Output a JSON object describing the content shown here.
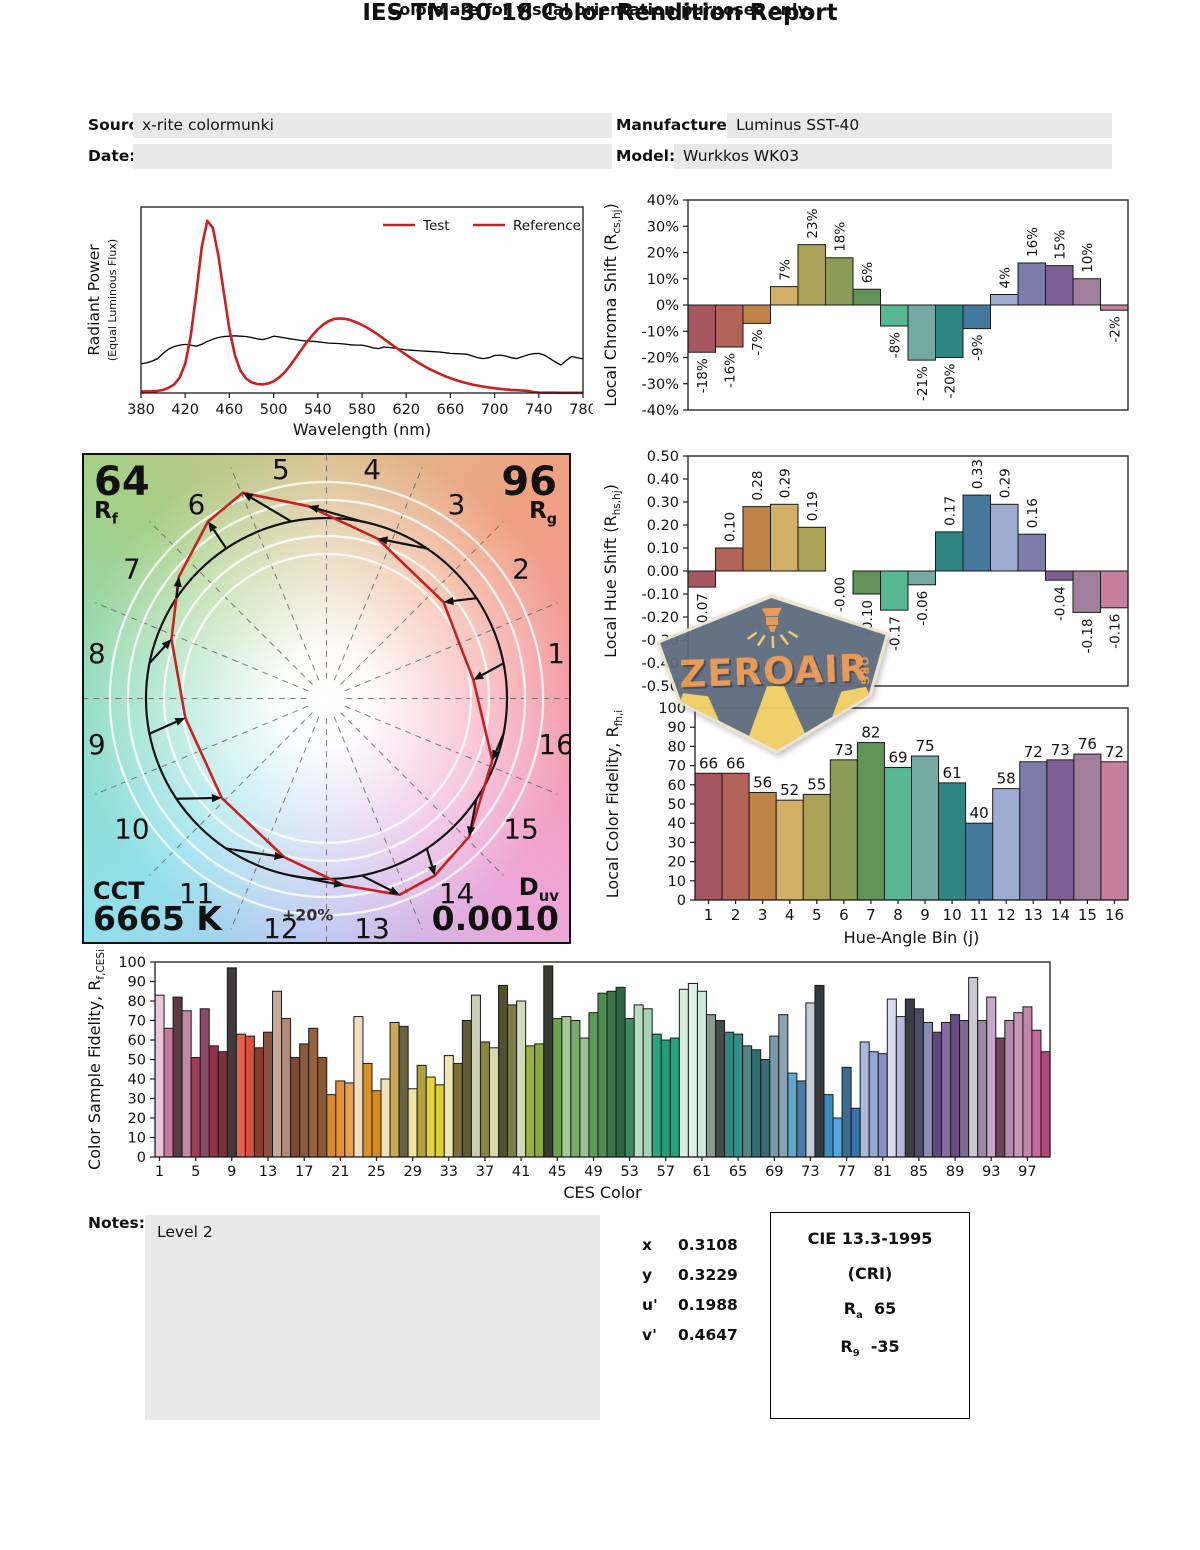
{
  "title": "IES TM-30-18 Color Rendition Report",
  "header": {
    "source_label": "Source:",
    "source_value": "x-rite colormunki",
    "date_label": "Date:",
    "date_value": "",
    "manufacturer_label": "Manufacturer:",
    "manufacturer_value": "Luminus SST-40",
    "model_label": "Model:",
    "model_value": "Wurkkos WK03"
  },
  "bin_colors": [
    "#a55660",
    "#b26358",
    "#c08347",
    "#d2af67",
    "#aaa156",
    "#8c9c55",
    "#629356",
    "#57b894",
    "#74aaa2",
    "#2f8581",
    "#44799d",
    "#9dabd0",
    "#7c7cab",
    "#7d5e95",
    "#a07f9b",
    "#c5809f"
  ],
  "chart_data": [
    {
      "id": "spd",
      "type": "line",
      "xlabel": "Wavelength (nm)",
      "ylabel_line1": "Radiant Power",
      "ylabel_line2": "(Equal Luminous Flux)",
      "xlim": [
        380,
        780
      ],
      "ylim": [
        0,
        1.08
      ],
      "xticks": [
        380,
        420,
        460,
        500,
        540,
        580,
        620,
        660,
        700,
        740,
        780
      ],
      "legend": {
        "test": "Test",
        "reference": "Reference",
        "position": "top-right"
      },
      "x_start": 380,
      "x_step": 5,
      "series": [
        {
          "name": "Test",
          "color": "#cc2020",
          "width": 2.6,
          "y": [
            0.008,
            0.009,
            0.01,
            0.012,
            0.018,
            0.03,
            0.05,
            0.09,
            0.17,
            0.33,
            0.58,
            0.85,
            1.0,
            0.96,
            0.8,
            0.58,
            0.37,
            0.22,
            0.13,
            0.085,
            0.062,
            0.052,
            0.05,
            0.055,
            0.068,
            0.09,
            0.12,
            0.16,
            0.205,
            0.25,
            0.295,
            0.335,
            0.37,
            0.398,
            0.418,
            0.43,
            0.433,
            0.43,
            0.422,
            0.41,
            0.395,
            0.378,
            0.358,
            0.336,
            0.313,
            0.29,
            0.267,
            0.244,
            0.222,
            0.2,
            0.18,
            0.161,
            0.143,
            0.127,
            0.112,
            0.098,
            0.086,
            0.075,
            0.065,
            0.057,
            0.049,
            0.043,
            0.037,
            0.032,
            0.028,
            0.024,
            0.021,
            0.018,
            0.016,
            0.014,
            0.012,
            0.006,
            0.003,
            0.002,
            0.002,
            0.002,
            0.001,
            0.001,
            0.001,
            0.001,
            0.001
          ]
        },
        {
          "name": "Reference",
          "color": "#000000",
          "width": 1.3,
          "y": [
            0.17,
            0.175,
            0.185,
            0.2,
            0.23,
            0.255,
            0.27,
            0.278,
            0.282,
            0.278,
            0.272,
            0.283,
            0.3,
            0.312,
            0.322,
            0.328,
            0.33,
            0.332,
            0.33,
            0.328,
            0.322,
            0.315,
            0.31,
            0.318,
            0.33,
            0.326,
            0.32,
            0.315,
            0.31,
            0.305,
            0.302,
            0.3,
            0.298,
            0.293,
            0.29,
            0.288,
            0.287,
            0.284,
            0.28,
            0.278,
            0.278,
            0.272,
            0.262,
            0.258,
            0.267,
            0.264,
            0.26,
            0.255,
            0.25,
            0.248,
            0.246,
            0.244,
            0.242,
            0.24,
            0.238,
            0.234,
            0.23,
            0.228,
            0.227,
            0.225,
            0.215,
            0.205,
            0.2,
            0.205,
            0.218,
            0.22,
            0.215,
            0.205,
            0.2,
            0.21,
            0.222,
            0.228,
            0.23,
            0.22,
            0.2,
            0.18,
            0.162,
            0.19,
            0.212,
            0.205,
            0.198
          ]
        }
      ]
    },
    {
      "id": "chroma",
      "type": "bar",
      "ylabel_parts": [
        "Local Chroma Shift (R",
        "cs,hj",
        ")"
      ],
      "ylim": [
        -40,
        40
      ],
      "yticks": [
        40,
        30,
        20,
        10,
        0,
        -10,
        -20,
        -30,
        -40
      ],
      "yticklabels": [
        "40%",
        "30%",
        "20%",
        "10%",
        "0%",
        "-10%",
        "-20%",
        "-30%",
        "-40%"
      ],
      "categories": [
        "1",
        "2",
        "3",
        "4",
        "5",
        "6",
        "7",
        "8",
        "9",
        "10",
        "11",
        "12",
        "13",
        "14",
        "15",
        "16"
      ],
      "values": [
        -18,
        -16,
        -7,
        7,
        23,
        18,
        6,
        -8,
        -21,
        -20,
        -9,
        4,
        16,
        15,
        10,
        -2
      ],
      "labels": [
        "-18%",
        "-16%",
        "-7%",
        "7%",
        "23%",
        "18%",
        "6%",
        "-8%",
        "-21%",
        "-20%",
        "-9%",
        "4%",
        "16%",
        "15%",
        "10%",
        "-2%"
      ]
    },
    {
      "id": "hue",
      "type": "bar",
      "ylabel_parts": [
        "Local Hue Shift (R",
        "hs,hj",
        ")"
      ],
      "ylim": [
        -0.5,
        0.5
      ],
      "yticks": [
        0.5,
        0.4,
        0.3,
        0.2,
        0.1,
        0,
        -0.1,
        -0.2,
        -0.3,
        -0.4,
        -0.5
      ],
      "yticklabels": [
        "0.50",
        "0.40",
        "0.30",
        "0.20",
        "0.10",
        "0.00",
        "-0.10",
        "-0.20",
        "-0.30",
        "-0.40",
        "-0.50"
      ],
      "categories": [
        "1",
        "2",
        "3",
        "4",
        "5",
        "6",
        "7",
        "8",
        "9",
        "10",
        "11",
        "12",
        "13",
        "14",
        "15",
        "16"
      ],
      "values": [
        -0.07,
        0.1,
        0.28,
        0.29,
        0.19,
        -0.0,
        -0.1,
        -0.17,
        -0.06,
        0.17,
        0.33,
        0.29,
        0.16,
        -0.04,
        -0.18,
        -0.16
      ],
      "labels": [
        "-0.07",
        "0.10",
        "0.28",
        "0.29",
        "0.19",
        "-0.00",
        "-0.10",
        "-0.17",
        "-0.06",
        "0.17",
        "0.33",
        "0.29",
        "0.16",
        "-0.04",
        "-0.18",
        "-0.16"
      ]
    },
    {
      "id": "fidelity",
      "type": "bar",
      "ylabel_parts": [
        "Local Color Fidelity, R",
        "fh,i",
        ""
      ],
      "xlabel": "Hue-Angle Bin (j)",
      "ylim": [
        0,
        100
      ],
      "yticks": [
        100,
        90,
        80,
        70,
        60,
        50,
        40,
        30,
        20,
        10,
        0
      ],
      "yticklabels": [
        "100",
        "90",
        "80",
        "70",
        "60",
        "50",
        "40",
        "30",
        "20",
        "10",
        "0"
      ],
      "categories": [
        "1",
        "2",
        "3",
        "4",
        "5",
        "6",
        "7",
        "8",
        "9",
        "10",
        "11",
        "12",
        "13",
        "14",
        "15",
        "16"
      ],
      "values": [
        66,
        66,
        56,
        52,
        55,
        73,
        82,
        69,
        75,
        61,
        40,
        58,
        72,
        73,
        76,
        72
      ],
      "labels": [
        "66",
        "66",
        "56",
        "52",
        "55",
        "73",
        "82",
        "69",
        "75",
        "61",
        "40",
        "58",
        "72",
        "73",
        "76",
        "72"
      ]
    },
    {
      "id": "ces",
      "type": "bar",
      "ylabel_parts": [
        "Color Sample Fidelity, R",
        "f,CESi",
        ""
      ],
      "xlabel": "CES Color",
      "ylim": [
        0,
        100
      ],
      "yticks": [
        100,
        90,
        80,
        70,
        60,
        50,
        40,
        30,
        20,
        10,
        0
      ],
      "yticklabels": [
        "100",
        "90",
        "80",
        "70",
        "60",
        "50",
        "40",
        "30",
        "20",
        "10",
        "0"
      ],
      "xticks": [
        1,
        5,
        9,
        13,
        17,
        21,
        25,
        29,
        33,
        37,
        41,
        45,
        49,
        53,
        57,
        61,
        65,
        69,
        73,
        77,
        81,
        85,
        89,
        93,
        97
      ],
      "values": [
        83,
        66,
        82,
        75,
        51,
        76,
        57,
        54,
        97,
        63,
        62,
        56,
        64,
        85,
        71,
        51,
        58,
        66,
        51,
        32,
        39,
        38,
        72,
        48,
        34,
        40,
        69,
        67,
        35,
        47,
        41,
        37,
        52,
        48,
        70,
        83,
        59,
        56,
        88,
        78,
        80,
        57,
        58,
        98,
        71,
        72,
        70,
        61,
        74,
        84,
        85,
        87,
        71,
        78,
        76,
        63,
        60,
        61,
        86,
        89,
        85,
        73,
        70,
        64,
        63,
        57,
        55,
        50,
        62,
        73,
        43,
        39,
        79,
        88,
        32,
        20,
        46,
        25,
        59,
        54,
        53,
        81,
        72,
        81,
        76,
        69,
        64,
        69,
        73,
        70,
        92,
        70,
        82,
        61,
        70,
        74,
        77,
        65,
        54
      ],
      "colors": [
        "#ebc5d8",
        "#c5799c",
        "#593a45",
        "#c089a6",
        "#9c3e54",
        "#8a4a63",
        "#8f3448",
        "#7d2f3a",
        "#3f3a3c",
        "#e0614f",
        "#d94f3b",
        "#8a3b2c",
        "#8a5340",
        "#c4aa9c",
        "#b28a78",
        "#7c4a30",
        "#8a5a3a",
        "#97613c",
        "#8a5a2e",
        "#da8a28",
        "#e89038",
        "#e7a253",
        "#f2dfc2",
        "#d89228",
        "#d8891b",
        "#f2e2bb",
        "#c9a953",
        "#6a6142",
        "#f0e6a3",
        "#b1a140",
        "#e8d23f",
        "#e0cc38",
        "#ede8b2",
        "#7a7238",
        "#5e5d35",
        "#c9cdb2",
        "#8a8645",
        "#d9d9aa",
        "#515130",
        "#7a7e46",
        "#d2dab9",
        "#9ab142",
        "#8aa93a",
        "#363a32",
        "#6aa252",
        "#a2c993",
        "#7aa96a",
        "#9ac192",
        "#5e9a5a",
        "#4e8e52",
        "#3a724a",
        "#2e6642",
        "#3e8a62",
        "#b9dcc4",
        "#a4d4b8",
        "#2aa37e",
        "#1f9e78",
        "#26a17c",
        "#d8ece2",
        "#ddf0e8",
        "#cde8dc",
        "#8a9a8e",
        "#454c48",
        "#2e8a80",
        "#2f8e88",
        "#57827e",
        "#2d6e70",
        "#3a6a74",
        "#7a98a8",
        "#8aa2b4",
        "#62a8cc",
        "#4a7ea8",
        "#c2ccd2",
        "#35383c",
        "#3a8ec4",
        "#55aad8",
        "#3d6a92",
        "#3a72ac",
        "#aab8dc",
        "#98a6d4",
        "#8890c8",
        "#dcdcf0",
        "#b8b8d8",
        "#3c3c44",
        "#4c4c64",
        "#8c8cb0",
        "#5c4a7c",
        "#8a6aa4",
        "#6c4a84",
        "#7c6a92",
        "#ccc8d2",
        "#9c8aa4",
        "#c8a8c8",
        "#6c4458",
        "#b48aa8",
        "#c898b8",
        "#c285a8",
        "#c8679a",
        "#b04878"
      ]
    }
  ],
  "cvg": {
    "rf_value": "64",
    "rf_sym": "R",
    "rf_sub": "f",
    "rg_value": "96",
    "rg_sym": "R",
    "rg_sub": "g",
    "cct_label": "CCT",
    "cct_value": "6665 K",
    "duv_sym": "D",
    "duv_sub": "uv",
    "duv_value": "0.0010",
    "ring_label": "+20%",
    "test_color": "#cc2020",
    "reference_color": "#111111",
    "wheel_colors": [
      "#d8c08e",
      "#f0a182",
      "#f598a5",
      "#eea6d8",
      "#bfc4f2",
      "#8fe0ea",
      "#8fdcc0",
      "#a5cf85"
    ]
  },
  "notes": {
    "label": "Notes:",
    "value": "Level 2"
  },
  "chromaticity": {
    "rows": [
      {
        "label": "x",
        "value": "0.3108"
      },
      {
        "label": "y",
        "value": "0.3229"
      },
      {
        "label": "u'",
        "value": "0.1988"
      },
      {
        "label": "v'",
        "value": "0.4647"
      }
    ]
  },
  "cri": {
    "line1": "CIE 13.3-1995",
    "line2": "(CRI)",
    "ra_sym": "R",
    "ra_sub": "a",
    "ra_value": "65",
    "r9_sym": "R",
    "r9_sub": "9",
    "r9_value": "-35"
  },
  "footer": "Colors are for visual orientation purposes only.",
  "watermark": {
    "text": "ZEROAIR",
    "suffix": "ORG"
  }
}
